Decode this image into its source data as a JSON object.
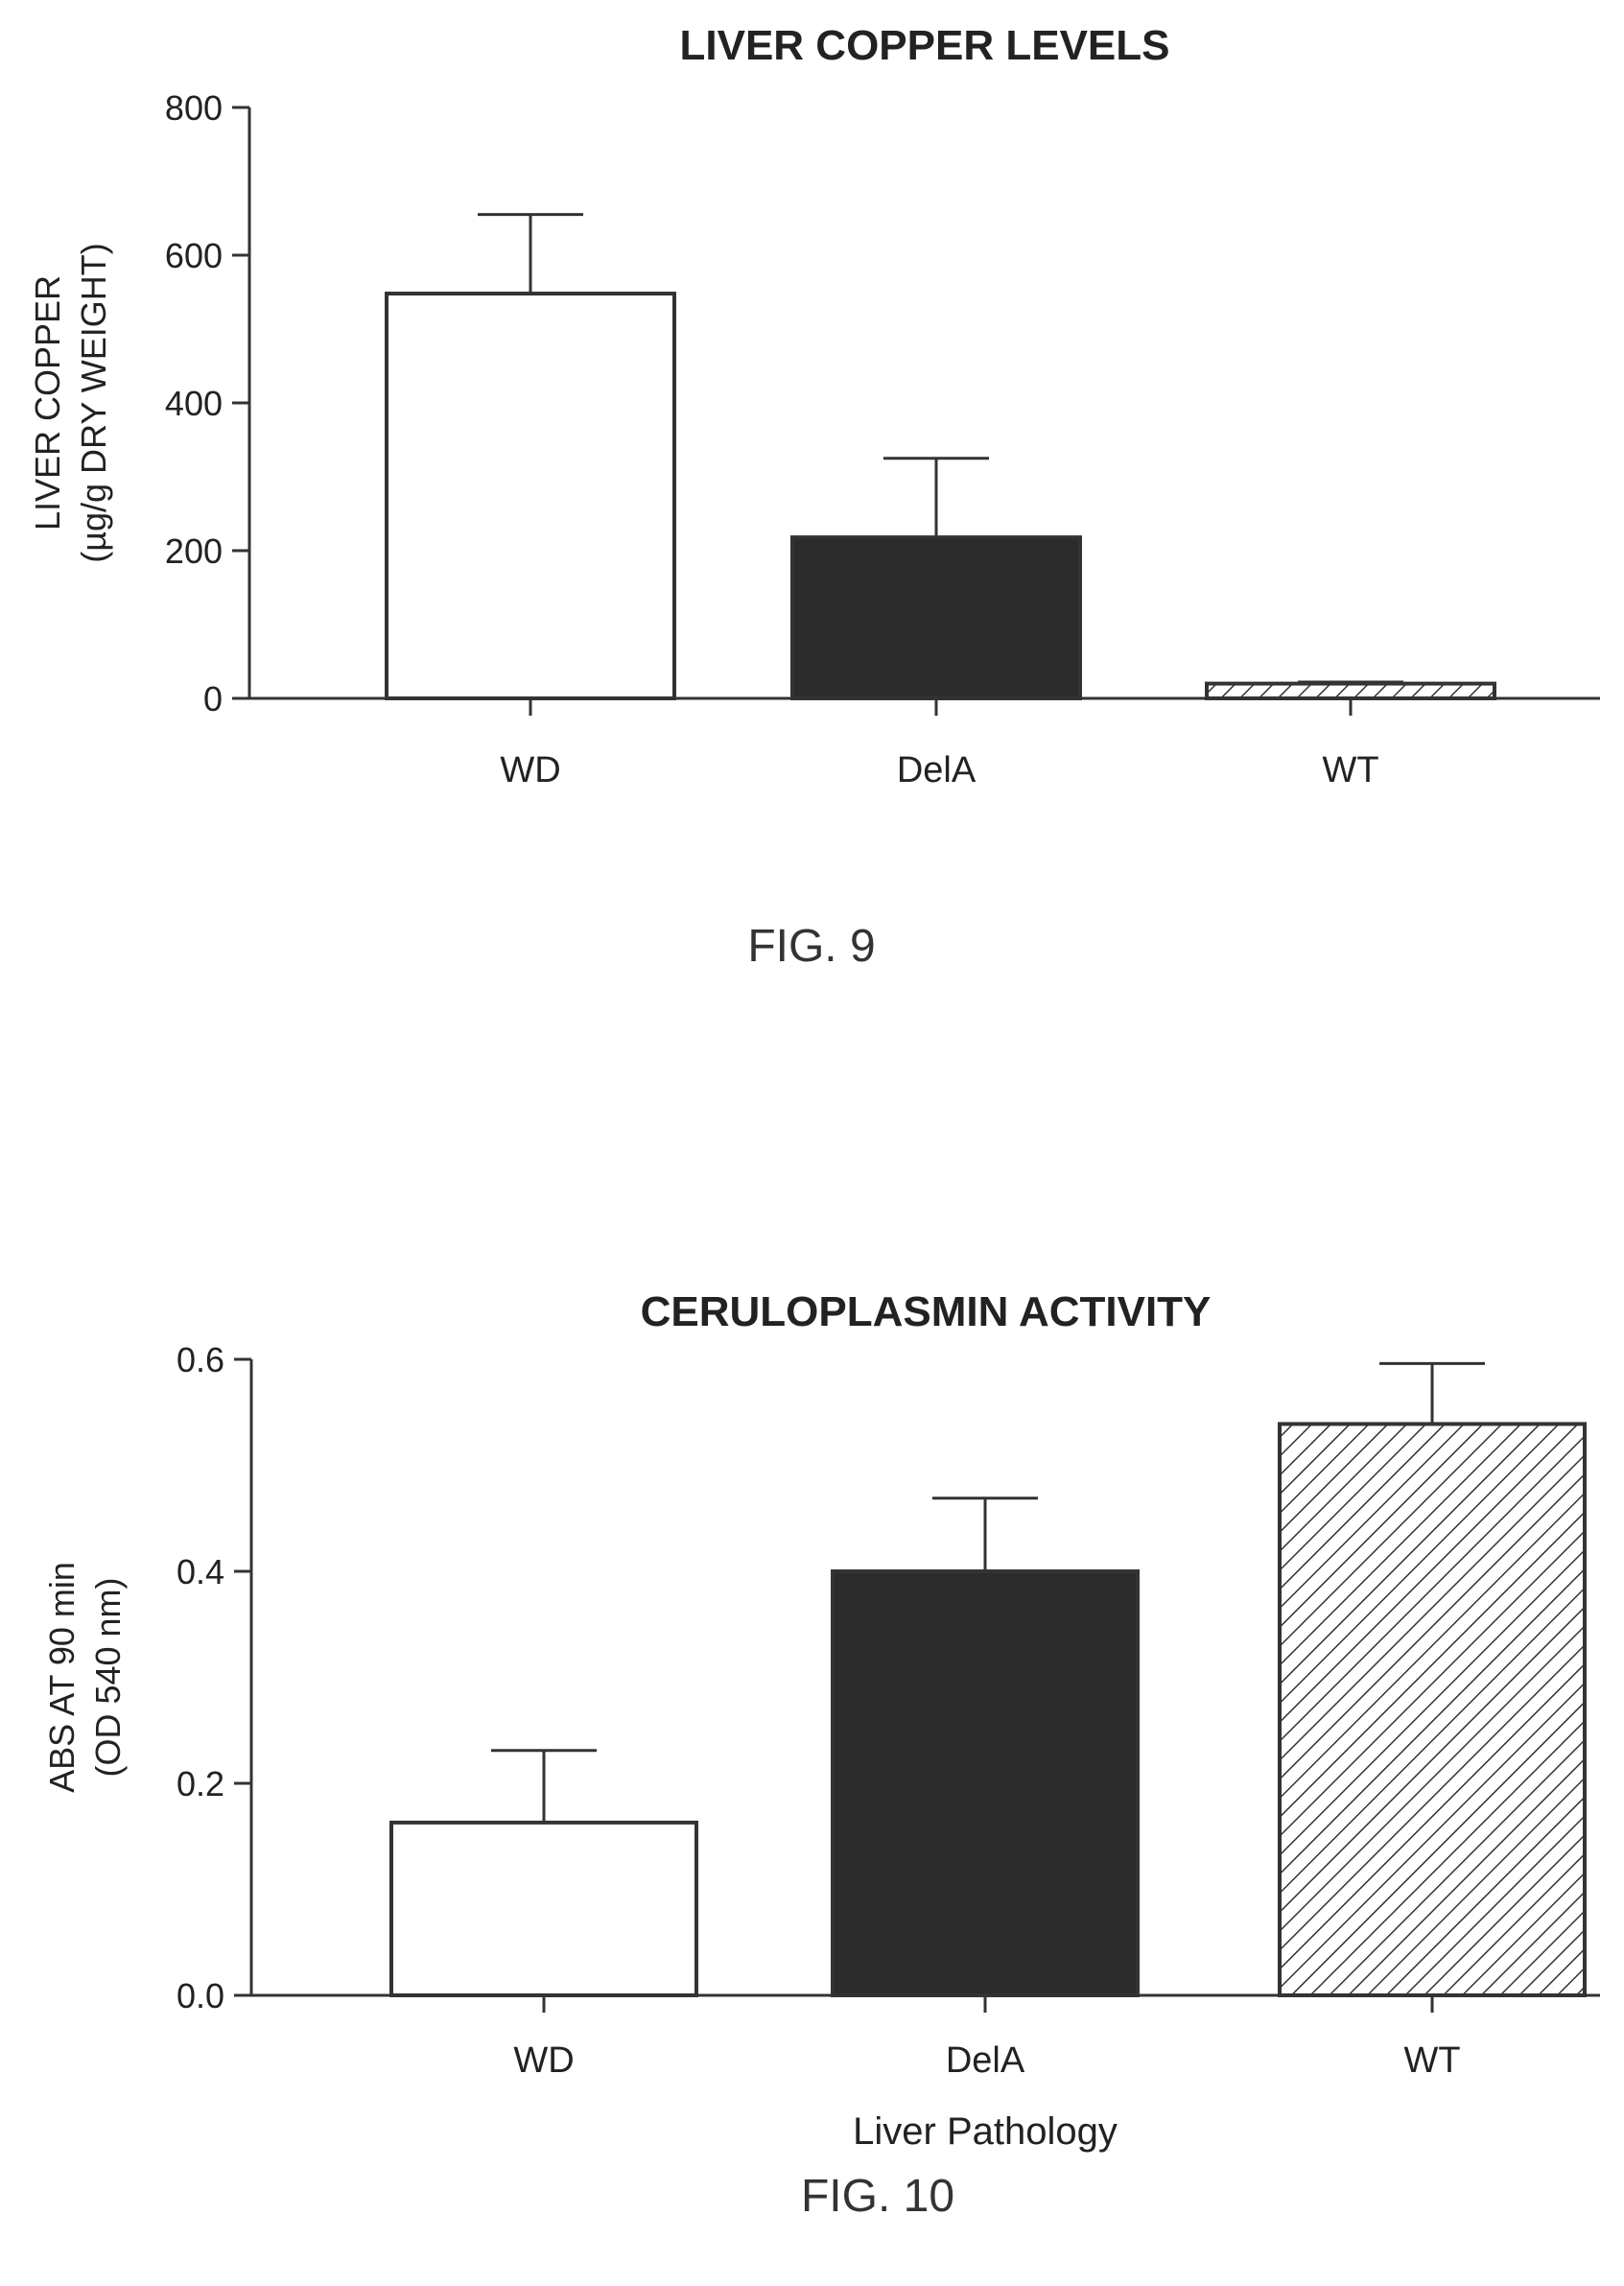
{
  "figures": [
    {
      "label": "FIG. 9"
    },
    {
      "label": "FIG. 10"
    }
  ],
  "chart_data": [
    {
      "type": "bar",
      "title": "LIVER COPPER LEVELS",
      "ylabel": [
        "LIVER COPPER",
        "(µg/g DRY WEIGHT)"
      ],
      "xlabel": "",
      "categories": [
        "WD",
        "DelA",
        "WT"
      ],
      "values": [
        548,
        218,
        20
      ],
      "error": [
        107,
        107,
        2
      ],
      "ylim": [
        0,
        800
      ],
      "yticks": [
        0,
        200,
        400,
        600,
        800
      ],
      "tick_labels": [
        "0",
        "200",
        "400",
        "600",
        "800"
      ],
      "fills": [
        "white",
        "dark",
        "hatch"
      ]
    },
    {
      "type": "bar",
      "title": "CERULOPLASMIN ACTIVITY",
      "ylabel": [
        "ABS AT 90 min",
        "(OD 540 nm)"
      ],
      "xlabel": "Liver Pathology",
      "categories": [
        "WD",
        "DelA",
        "WT"
      ],
      "values": [
        0.163,
        0.4,
        0.539
      ],
      "error": [
        0.068,
        0.069,
        0.057
      ],
      "ylim": [
        0,
        0.6
      ],
      "yticks": [
        0,
        0.2,
        0.4,
        0.6
      ],
      "tick_labels": [
        "0.0",
        "0.2",
        "0.4",
        "0.6"
      ],
      "fills": [
        "white",
        "dark",
        "hatch"
      ]
    }
  ]
}
